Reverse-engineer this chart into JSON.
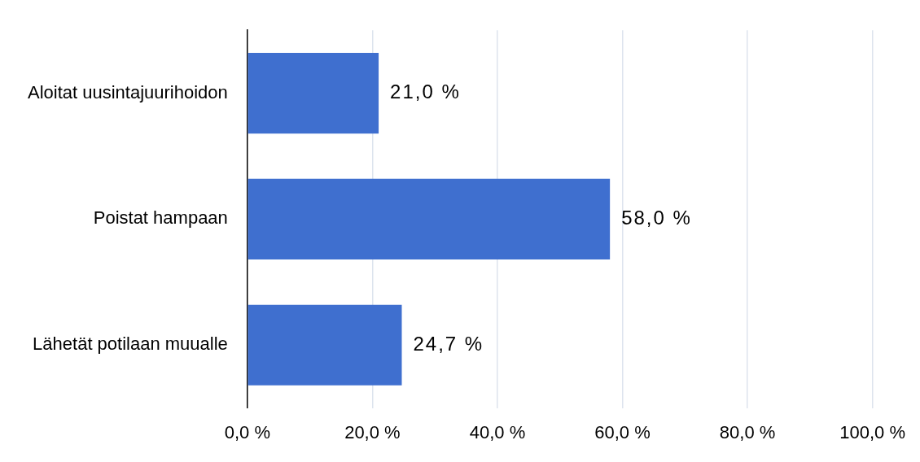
{
  "chart_data": {
    "type": "bar",
    "orientation": "horizontal",
    "categories": [
      "Aloitat uusintajuurihoidon",
      "Poistat hampaan",
      "Lähetät potilaan muualle"
    ],
    "values": [
      21.0,
      58.0,
      24.7
    ],
    "value_labels": [
      "21,0 %",
      "58,0 %",
      "24,7 %"
    ],
    "color": "#3f6fcf",
    "xlim": [
      0,
      100
    ],
    "xticks": [
      {
        "value": 0,
        "label": "0,0 %"
      },
      {
        "value": 20,
        "label": "20,0 %"
      },
      {
        "value": 40,
        "label": "40,0 %"
      },
      {
        "value": 60,
        "label": "60,0 %"
      },
      {
        "value": 80,
        "label": "80,0 %"
      },
      {
        "value": 100,
        "label": "100,0 %"
      }
    ],
    "grid": "x",
    "legend": false
  }
}
